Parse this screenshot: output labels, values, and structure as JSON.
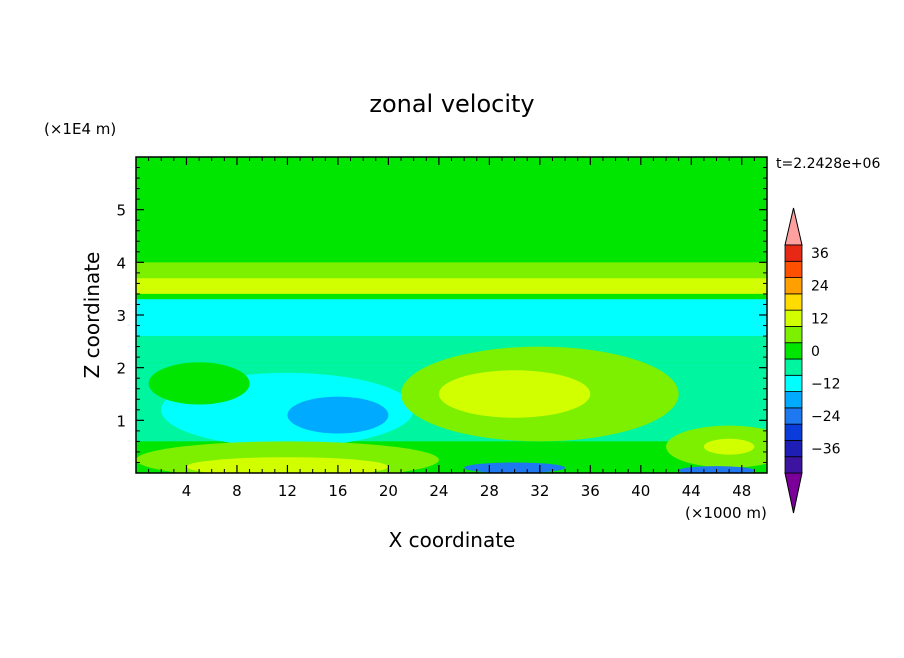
{
  "chart_data": {
    "type": "heatmap",
    "title": "zonal velocity",
    "xlabel": "X coordinate",
    "ylabel": "Z coordinate",
    "x_scale_label": "(×1000 m)",
    "y_scale_label": "(×1E4 m)",
    "time_label": "t=2.2428e+06",
    "xlim": [
      0,
      50
    ],
    "ylim": [
      0,
      6
    ],
    "x_ticks": [
      "4",
      "8",
      "12",
      "16",
      "20",
      "24",
      "28",
      "32",
      "36",
      "40",
      "44",
      "48"
    ],
    "y_ticks": [
      "1",
      "2",
      "3",
      "4",
      "5"
    ],
    "colorbar": {
      "labels": [
        "36",
        "24",
        "12",
        "0",
        "-12",
        "-24",
        "-36"
      ],
      "levels": [
        -42,
        -36,
        -30,
        -24,
        -18,
        -12,
        -6,
        0,
        6,
        12,
        18,
        24,
        30,
        36,
        42
      ],
      "colors": [
        "#7b0099",
        "#3c14a0",
        "#1e1eb4",
        "#0a3cdc",
        "#1e78f0",
        "#00aaff",
        "#00ffff",
        "#00f5a0",
        "#00e600",
        "#7df000",
        "#d2ff00",
        "#ffdc00",
        "#ffa000",
        "#ff5000",
        "#e62814",
        "#ffa0a0"
      ]
    },
    "bands": [
      {
        "z": [
          5.2,
          6.0
        ],
        "value": 3
      },
      {
        "z": [
          4.2,
          5.2
        ],
        "value": 1
      },
      {
        "z": [
          4.0,
          4.2
        ],
        "value": 5
      },
      {
        "z": [
          3.7,
          4.0
        ],
        "value": 10
      },
      {
        "z": [
          3.4,
          3.7
        ],
        "value": 14
      },
      {
        "z": [
          3.3,
          3.4
        ],
        "value": 4
      },
      {
        "z": [
          2.6,
          3.3
        ],
        "value": -8
      },
      {
        "z": [
          2.1,
          2.6
        ],
        "value": -3
      },
      {
        "z": [
          0.6,
          2.1
        ],
        "value": -2
      },
      {
        "z": [
          0.0,
          0.6
        ],
        "value": 3
      }
    ],
    "features": [
      {
        "x": 10,
        "z": 5.8,
        "rx": 14,
        "rz": 0.35,
        "value": 5
      },
      {
        "x": 40,
        "z": 5.9,
        "rx": 8,
        "rz": 0.2,
        "value": 5
      },
      {
        "x": 12,
        "z": 1.2,
        "rx": 10,
        "rz": 0.7,
        "value": -8
      },
      {
        "x": 16,
        "z": 1.1,
        "rx": 4,
        "rz": 0.35,
        "value": -13
      },
      {
        "x": 5,
        "z": 1.7,
        "rx": 4,
        "rz": 0.4,
        "value": 3
      },
      {
        "x": 32,
        "z": 1.5,
        "rx": 11,
        "rz": 0.9,
        "value": 6
      },
      {
        "x": 30,
        "z": 1.5,
        "rx": 6,
        "rz": 0.45,
        "value": 12
      },
      {
        "x": 12,
        "z": 0.25,
        "rx": 12,
        "rz": 0.35,
        "value": 6
      },
      {
        "x": 12,
        "z": 0.12,
        "rx": 8,
        "rz": 0.18,
        "value": 15
      },
      {
        "x": 30,
        "z": 0.1,
        "rx": 4,
        "rz": 0.1,
        "value": -20
      },
      {
        "x": 47,
        "z": 0.5,
        "rx": 5,
        "rz": 0.4,
        "value": 7
      },
      {
        "x": 47,
        "z": 0.5,
        "rx": 2,
        "rz": 0.15,
        "value": 13
      },
      {
        "x": 46,
        "z": 0.05,
        "rx": 3,
        "rz": 0.08,
        "value": -22
      }
    ]
  }
}
